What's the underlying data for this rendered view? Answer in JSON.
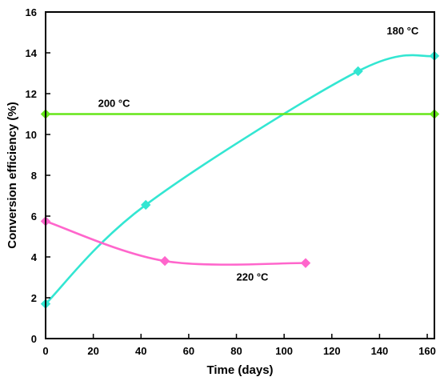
{
  "chart_data": {
    "type": "line",
    "title": "",
    "xlabel": "Time (days)",
    "ylabel": "Conversion efficiency (%)",
    "xlim": [
      0,
      163
    ],
    "ylim": [
      0,
      16
    ],
    "xticks": [
      0,
      20,
      40,
      60,
      80,
      100,
      120,
      140,
      160
    ],
    "yticks": [
      0,
      2,
      4,
      6,
      8,
      10,
      12,
      14,
      16
    ],
    "grid": false,
    "series": [
      {
        "name": "180 °C",
        "color": "#33e6d2",
        "marker": "diamond",
        "x": [
          0,
          42,
          131,
          163
        ],
        "y": [
          1.7,
          6.55,
          13.1,
          13.85
        ]
      },
      {
        "name": "200 °C",
        "color": "#66e619",
        "marker": "diamond",
        "x": [
          0,
          163
        ],
        "y": [
          11.0,
          11.0
        ]
      },
      {
        "name": "220 °C",
        "color": "#ff66cc",
        "marker": "diamond",
        "x": [
          0,
          50,
          109
        ],
        "y": [
          5.75,
          3.8,
          3.7
        ]
      }
    ]
  }
}
